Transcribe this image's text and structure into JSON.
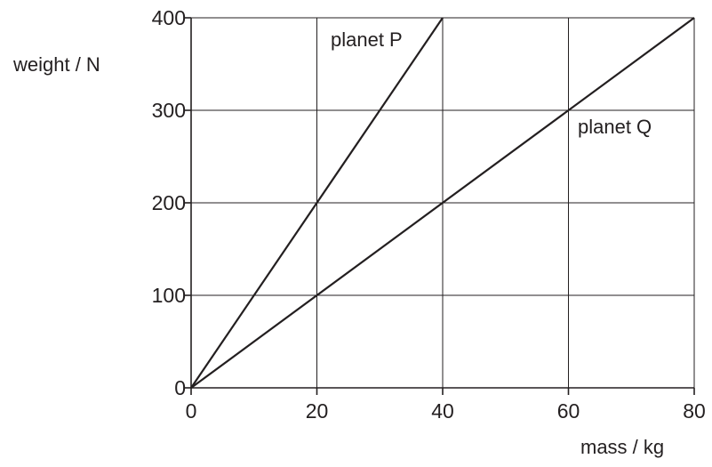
{
  "chart_data": {
    "type": "line",
    "xlabel": "mass / kg",
    "ylabel": "weight / N",
    "xlim": [
      0,
      80
    ],
    "ylim": [
      0,
      400
    ],
    "x_ticks": [
      0,
      20,
      40,
      60,
      80
    ],
    "y_ticks": [
      0,
      100,
      200,
      300,
      400
    ],
    "grid": true,
    "series": [
      {
        "name": "planet P",
        "x": [
          0,
          40
        ],
        "y": [
          0,
          400
        ],
        "color": "#231f20"
      },
      {
        "name": "planet Q",
        "x": [
          0,
          80
        ],
        "y": [
          0,
          400
        ],
        "color": "#231f20"
      }
    ]
  }
}
